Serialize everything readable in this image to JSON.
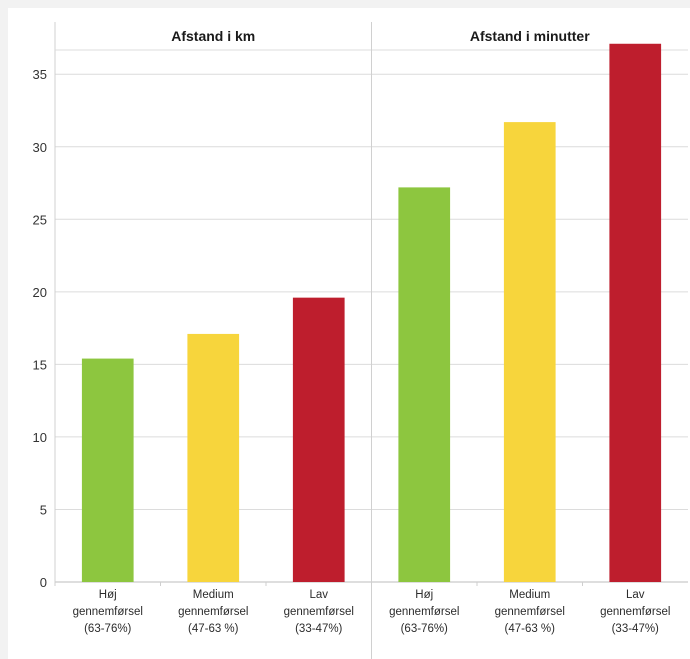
{
  "chart_data": {
    "type": "bar",
    "panels": [
      {
        "title": "Afstand i km",
        "categories": [
          [
            "Høj",
            "gennemførsel",
            "(63-76%)"
          ],
          [
            "Medium",
            "gennemførsel",
            "(47-63 %)"
          ],
          [
            "Lav",
            "gennemførsel",
            "(33-47%)"
          ]
        ],
        "values": [
          15.4,
          17.1,
          19.6
        ]
      },
      {
        "title": "Afstand i minutter",
        "categories": [
          [
            "Høj",
            "gennemførsel",
            "(63-76%)"
          ],
          [
            "Medium",
            "gennemførsel",
            "(47-63 %)"
          ],
          [
            "Lav",
            "gennemførsel",
            "(33-47%)"
          ]
        ],
        "values": [
          27.2,
          31.7,
          37.1
        ]
      }
    ],
    "bar_colors": [
      "#8dc63f",
      "#f7d53c",
      "#be1e2d"
    ],
    "y_ticks": [
      0,
      5,
      10,
      15,
      20,
      25,
      30,
      35
    ],
    "ylim": [
      0,
      38.6
    ],
    "grid": true,
    "legend": "none"
  }
}
